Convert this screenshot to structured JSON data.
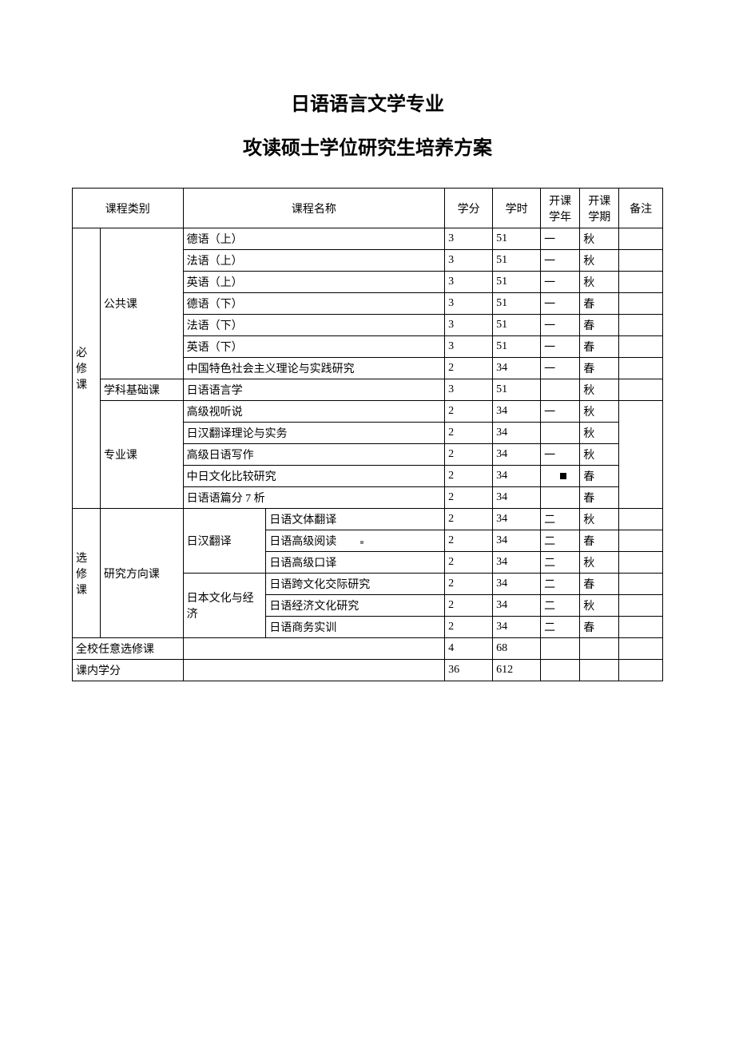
{
  "title1": "日语语言文学专业",
  "title2": "攻读硕士学位研究生培养方案",
  "headers": {
    "category": "课程类别",
    "courseName": "课程名称",
    "credit": "学分",
    "hours": "学时",
    "year": "开课学年",
    "semester": "开课学期",
    "note": "备注"
  },
  "categories": {
    "required": "必修课",
    "elective": "选修课",
    "public": "公共课",
    "foundation": "学科基础课",
    "major": "专业课",
    "direction": "研究方向课",
    "translation": "日汉翻译",
    "culture": "日本文化与经济",
    "freeElective": "全校任意选修课",
    "totalCredit": "课内学分"
  },
  "rows": [
    {
      "name": "德语（上）",
      "credit": "3",
      "hours": "51",
      "year": "一",
      "sem": "秋"
    },
    {
      "name": "法语（上）",
      "credit": "3",
      "hours": "51",
      "year": "一",
      "sem": "秋"
    },
    {
      "name": "英语（上）",
      "credit": "3",
      "hours": "51",
      "year": "一",
      "sem": "秋"
    },
    {
      "name": "德语（下）",
      "credit": "3",
      "hours": "51",
      "year": "一",
      "sem": "春"
    },
    {
      "name": "法语（下）",
      "credit": "3",
      "hours": "51",
      "year": "一",
      "sem": "春"
    },
    {
      "name": "英语（下）",
      "credit": "3",
      "hours": "51",
      "year": "一",
      "sem": "春"
    },
    {
      "name": "中国特色社会主义理论与实践研究",
      "credit": "2",
      "hours": "34",
      "year": "一",
      "sem": "春"
    },
    {
      "name": "日语语言学",
      "credit": "3",
      "hours": "51",
      "year": "",
      "sem": "秋"
    },
    {
      "name": "高级视听说",
      "credit": "2",
      "hours": "34",
      "year": "一",
      "sem": "秋"
    },
    {
      "name": "日汉翻译理论与实务",
      "credit": "2",
      "hours": "34",
      "year": "",
      "sem": "秋"
    },
    {
      "name": "高级日语写作",
      "credit": "2",
      "hours": "34",
      "year": "一",
      "sem": "秋"
    },
    {
      "name": "中日文化比较研究",
      "credit": "2",
      "hours": "34",
      "year": "",
      "sem": "春"
    },
    {
      "name": "日语语篇分 7 析",
      "credit": "2",
      "hours": "34",
      "year": "",
      "sem": "春"
    },
    {
      "name": "日语文体翻译",
      "credit": "2",
      "hours": "34",
      "year": "二",
      "sem": "秋"
    },
    {
      "name": "日语高级阅读",
      "credit": "2",
      "hours": "34",
      "year": "二",
      "sem": "春"
    },
    {
      "name": "日语高级口译",
      "credit": "2",
      "hours": "34",
      "year": "二",
      "sem": "秋"
    },
    {
      "name": "日语跨文化交际研究",
      "credit": "2",
      "hours": "34",
      "year": "二",
      "sem": "春"
    },
    {
      "name": "日语经济文化研究",
      "credit": "2",
      "hours": "34",
      "year": "二",
      "sem": "秋"
    },
    {
      "name": "日语商务实训",
      "credit": "2",
      "hours": "34",
      "year": "二",
      "sem": "春"
    }
  ],
  "totals": {
    "freeCredit": "4",
    "freeHours": "68",
    "totalCredit": "36",
    "totalHours": "612"
  }
}
